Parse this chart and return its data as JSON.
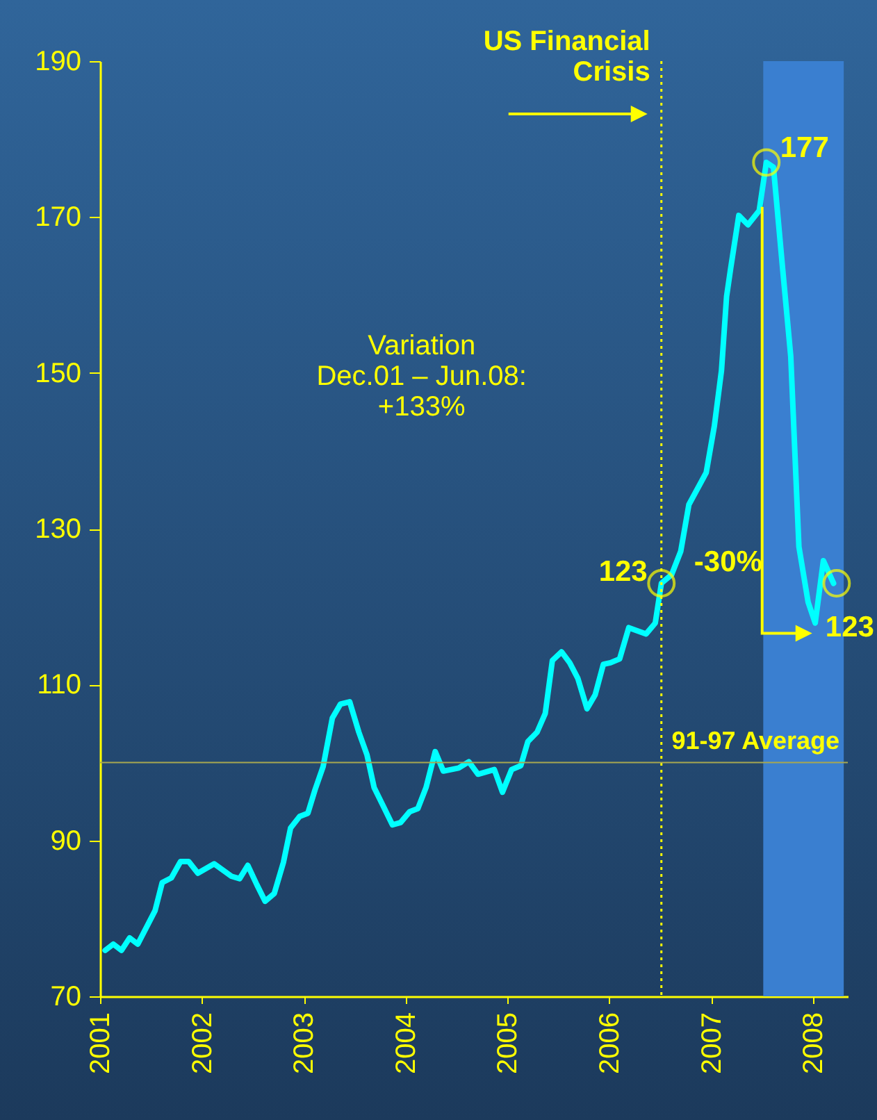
{
  "chart_data": {
    "type": "line",
    "x": [
      2001.05,
      2001.13,
      2001.21,
      2001.29,
      2001.37,
      2001.54,
      2001.61,
      2001.7,
      2001.79,
      2001.87,
      2001.96,
      2002.12,
      2002.29,
      2002.37,
      2002.45,
      2002.54,
      2002.62,
      2002.71,
      2002.8,
      2002.87,
      2002.96,
      2003.04,
      2003.11,
      2003.19,
      2003.28,
      2003.36,
      2003.45,
      2003.54,
      2003.62,
      2003.69,
      2003.78,
      2003.87,
      2003.95,
      2004.04,
      2004.12,
      2004.2,
      2004.29,
      2004.37,
      2004.52,
      2004.62,
      2004.71,
      2004.87,
      2004.95,
      2005.04,
      2005.13,
      2005.2,
      2005.29,
      2005.37,
      2005.44,
      2005.53,
      2005.61,
      2005.69,
      2005.78,
      2005.86,
      2005.94,
      2006.01,
      2006.1,
      2006.19,
      2006.36,
      2006.45,
      2006.51,
      2006.61,
      2006.7,
      2006.78,
      2006.95,
      2007.03,
      2007.1,
      2007.15,
      2007.19,
      2007.27,
      2007.36,
      2007.47,
      2007.54,
      2007.61,
      2007.7,
      2007.78,
      2007.86,
      2007.95,
      2008.02,
      2008.1,
      2008.2
    ],
    "series": [
      {
        "color": "#00ffff",
        "values": [
          75.9,
          76.7,
          75.9,
          77.5,
          76.7,
          81,
          84.6,
          85.2,
          87.3,
          87.3,
          85.8,
          87,
          85.4,
          85.1,
          86.8,
          84.3,
          82.2,
          83.2,
          87.2,
          91.6,
          93.1,
          93.5,
          96.5,
          99.5,
          105.7,
          107.5,
          107.8,
          103.9,
          101,
          96.8,
          94.4,
          92,
          92.3,
          93.7,
          94.1,
          96.8,
          101.4,
          98.9,
          99.3,
          100.1,
          98.5,
          99.1,
          96.2,
          99.1,
          99.6,
          102.7,
          103.9,
          106.3,
          113.1,
          114.2,
          112.8,
          110.8,
          106.9,
          108.7,
          112.6,
          112.8,
          113.3,
          117.3,
          116.5,
          117.9,
          123,
          124.1,
          127.1,
          133.1,
          137.2,
          143.2,
          150.3,
          159.8,
          163.4,
          170.2,
          169,
          170.8,
          177,
          176.4,
          163.4,
          152.1,
          127.7,
          120.6,
          117.9,
          125.9,
          123
        ]
      }
    ],
    "xlim": [
      2001,
      2008.34
    ],
    "xticks": [
      2001,
      2002,
      2003,
      2004,
      2005,
      2006,
      2007,
      2008
    ],
    "ylim": [
      70,
      190
    ],
    "yticks": [
      70,
      90,
      110,
      130,
      150,
      170,
      190
    ],
    "grid": false,
    "marker": "none",
    "line_style": "solid",
    "ref_lines": [
      {
        "axis": "x",
        "value": 2006.51,
        "label": "US Financial Crisis",
        "color": "#ffff00",
        "line_style": "dotted"
      },
      {
        "axis": "y",
        "value": 100,
        "label": "91-97 Average",
        "color": "#a8a850",
        "line_style": "solid"
      }
    ],
    "bands": [
      {
        "axis": "x",
        "from": 2007.51,
        "to": 2008.3,
        "color": "#3a7fd0"
      }
    ],
    "annotations": [
      "Variation Dec.01 – Jun.08: +133%",
      "-30%",
      {
        "text": "123",
        "x": 2006.51,
        "y": 123
      },
      {
        "text": "177",
        "x": 2007.54,
        "y": 177
      },
      {
        "text": "123",
        "x": 2008.23,
        "y": 123
      }
    ]
  }
}
